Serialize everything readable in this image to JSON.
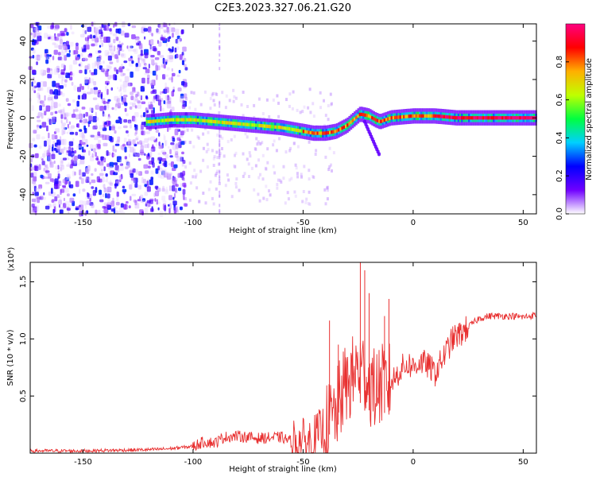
{
  "title": "C2E3.2023.327.06.21.G20",
  "chart_data": [
    {
      "type": "heatmap",
      "xlabel": "Height of straight line (km)",
      "ylabel": "Frequency (Hz)",
      "xlim": [
        -174,
        56
      ],
      "ylim": [
        -50,
        49
      ],
      "xticks": [
        -150,
        -100,
        -50,
        0,
        50
      ],
      "yticks": [
        -40,
        -20,
        0,
        20,
        40
      ],
      "colorbar": {
        "label": "Normalized spectral amplitude",
        "range": [
          0,
          1
        ],
        "ticks": [
          0.0,
          0.2,
          0.4,
          0.6,
          0.8
        ],
        "tick_labels": [
          "0.0",
          "0.2",
          "0.4",
          "0.6",
          "0.8"
        ],
        "colors": [
          "#ffffff",
          "#7000ff",
          "#0000ff",
          "#00d0ff",
          "#00ff40",
          "#c0ff00",
          "#ffb000",
          "#ff0000",
          "#ff0080"
        ]
      },
      "ridge": {
        "x": [
          -120,
          -110,
          -100,
          -90,
          -80,
          -70,
          -60,
          -50,
          -45,
          -40,
          -35,
          -30,
          -27,
          -24,
          -20,
          -17,
          -15,
          -10,
          0,
          10,
          20,
          30,
          40,
          50,
          56
        ],
        "y": [
          -2,
          -1,
          -1,
          -2,
          -3,
          -4,
          -5,
          -7,
          -8,
          -8,
          -7,
          -4,
          -1,
          2,
          1,
          -1,
          -2,
          0,
          1,
          1,
          0,
          0,
          0,
          0,
          0
        ]
      },
      "noise_region": [
        -174,
        -103
      ]
    },
    {
      "type": "line",
      "xlabel": "Height of straight line (km)",
      "ylabel": "SNR (10 * v/v)",
      "y_multiplier": "(x10⁴)",
      "xlim": [
        -174,
        56
      ],
      "ylim": [
        0,
        1.67
      ],
      "xticks": [
        -150,
        -100,
        -50,
        0,
        50
      ],
      "yticks": [
        0.5,
        1.0,
        1.5
      ],
      "ytick_labels": [
        "0.5",
        "1.0",
        "1.5"
      ],
      "color": "#e83030",
      "series": [
        {
          "x": [
            -174,
            -150,
            -120,
            -110,
            -100,
            -95,
            -90,
            -86,
            -80,
            -70,
            -60,
            -55,
            -50,
            -45,
            -40,
            -35,
            -32,
            -28,
            -25,
            -22,
            -18,
            -15,
            -12,
            -8,
            -5,
            -2,
            0,
            3,
            6,
            10,
            14,
            18,
            22,
            26,
            30,
            35,
            40,
            45,
            50,
            56
          ],
          "y": [
            0.02,
            0.02,
            0.03,
            0.04,
            0.06,
            0.1,
            0.09,
            0.14,
            0.15,
            0.13,
            0.14,
            0.1,
            0.09,
            0.12,
            0.22,
            0.35,
            0.55,
            0.65,
            0.75,
            0.7,
            0.55,
            0.6,
            0.58,
            0.67,
            0.75,
            0.78,
            0.75,
            0.8,
            0.78,
            0.7,
            0.85,
            1.0,
            1.05,
            1.12,
            1.18,
            1.2,
            1.2,
            1.2,
            1.19,
            1.21
          ]
        }
      ],
      "spikes": [
        {
          "x": -38,
          "y": 1.16
        },
        {
          "x": -34,
          "y": 0.95
        },
        {
          "x": -24,
          "y": 1.67
        },
        {
          "x": -22,
          "y": 1.6
        },
        {
          "x": -20,
          "y": 1.4
        },
        {
          "x": -11,
          "y": 1.35
        },
        {
          "x": -13,
          "y": 1.2
        }
      ]
    }
  ]
}
